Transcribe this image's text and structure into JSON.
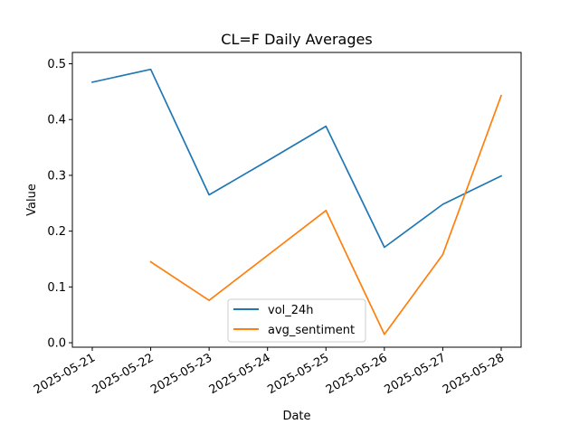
{
  "chart_data": {
    "type": "line",
    "title": "CL=F Daily Averages",
    "xlabel": "Date",
    "ylabel": "Value",
    "categories": [
      "2025-05-21",
      "2025-05-22",
      "2025-05-23",
      "2025-05-24",
      "2025-05-25",
      "2025-05-26",
      "2025-05-27",
      "2025-05-28"
    ],
    "ylim": [
      -0.008,
      0.5203
    ],
    "yticks": [
      0.0,
      0.1,
      0.2,
      0.3,
      0.4,
      0.5
    ],
    "ytick_labels": [
      "0.0",
      "0.1",
      "0.2",
      "0.3",
      "0.4",
      "0.5"
    ],
    "grid": false,
    "legend_position": "lower center",
    "series": [
      {
        "name": "vol_24h",
        "color": "#1f77b4",
        "values": [
          0.467,
          0.49,
          0.265,
          0.326,
          0.388,
          0.171,
          0.248,
          0.299
        ]
      },
      {
        "name": "avg_sentiment",
        "color": "#ff7f0e",
        "values": [
          null,
          0.145,
          0.076,
          null,
          0.237,
          0.015,
          0.158,
          0.443
        ]
      }
    ]
  }
}
